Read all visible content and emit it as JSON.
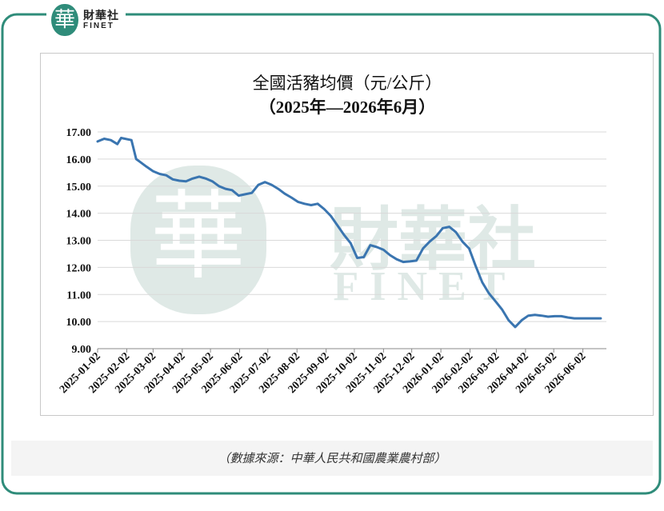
{
  "brand": {
    "seal": "華",
    "name_cn": "財華社",
    "name_en": "FINET"
  },
  "watermark": {
    "cn": "財華社",
    "en": "FINET"
  },
  "source_note": "（數據來源：中華人民共和國農業農村部）",
  "colors": {
    "frame": "#2f8c7a",
    "line": "#3a75b0",
    "grid": "#d9d9d9",
    "watermark": "#dfe9e6"
  },
  "chart_data": {
    "type": "line",
    "title": "全國活豬均價（元/公斤）",
    "subtitle": "（2025年—2026年6月）",
    "xlabel": "",
    "ylabel": "",
    "ylim": [
      9,
      17
    ],
    "y_ticks": [
      "9.00",
      "10.00",
      "11.00",
      "12.00",
      "13.00",
      "14.00",
      "15.00",
      "16.00",
      "17.00"
    ],
    "x_ticks": [
      "2025-01-02",
      "2025-02-02",
      "2025-03-02",
      "2025-04-02",
      "2025-05-02",
      "2025-06-02",
      "2025-07-02",
      "2025-08-02",
      "2025-09-02",
      "2025-10-02",
      "2025-11-02",
      "2025-12-02",
      "2026-01-02",
      "2026-02-02",
      "2026-03-02",
      "2026-04-02",
      "2026-05-02",
      "2026-06-02"
    ],
    "grid": true,
    "legend": "none",
    "series": [
      {
        "x": [
          "2025-01-02",
          "2025-01-09",
          "2025-01-16",
          "2025-01-23",
          "2025-01-27",
          "2025-02-07",
          "2025-02-12",
          "2025-02-16",
          "2025-02-23",
          "2025-03-02",
          "2025-03-09",
          "2025-03-16",
          "2025-03-23",
          "2025-03-30",
          "2025-04-06",
          "2025-04-13",
          "2025-04-20",
          "2025-04-27",
          "2025-05-04",
          "2025-05-11",
          "2025-05-18",
          "2025-05-25",
          "2025-06-01",
          "2025-06-08",
          "2025-06-15",
          "2025-06-22",
          "2025-06-29",
          "2025-07-06",
          "2025-07-13",
          "2025-07-20",
          "2025-07-27",
          "2025-08-03",
          "2025-08-10",
          "2025-08-17",
          "2025-08-24",
          "2025-08-31",
          "2025-09-07",
          "2025-09-14",
          "2025-09-21",
          "2025-09-28",
          "2025-10-05",
          "2025-10-12",
          "2025-10-19",
          "2025-10-26",
          "2025-11-02",
          "2025-11-09",
          "2025-11-16",
          "2025-11-23",
          "2025-11-30",
          "2025-12-07",
          "2025-12-14",
          "2025-12-21",
          "2025-12-28",
          "2026-01-04",
          "2026-01-11",
          "2026-01-18",
          "2026-01-25",
          "2026-02-01",
          "2026-02-08",
          "2026-02-15",
          "2026-02-22",
          "2026-03-01",
          "2026-03-08",
          "2026-03-15",
          "2026-03-22",
          "2026-03-29",
          "2026-04-05",
          "2026-04-12",
          "2026-04-19",
          "2026-04-26",
          "2026-05-03",
          "2026-05-10",
          "2026-05-17",
          "2026-05-24",
          "2026-05-31",
          "2026-06-07",
          "2026-06-14",
          "2026-06-21"
        ],
        "values": [
          16.65,
          16.75,
          16.7,
          16.55,
          16.78,
          16.7,
          16.0,
          15.9,
          15.72,
          15.55,
          15.45,
          15.4,
          15.25,
          15.2,
          15.18,
          15.28,
          15.35,
          15.28,
          15.18,
          15.0,
          14.9,
          14.85,
          14.65,
          14.7,
          14.75,
          15.05,
          15.15,
          15.05,
          14.9,
          14.72,
          14.58,
          14.42,
          14.35,
          14.3,
          14.35,
          14.15,
          13.9,
          13.55,
          13.2,
          12.9,
          12.35,
          12.38,
          12.82,
          12.75,
          12.65,
          12.45,
          12.3,
          12.2,
          12.22,
          12.25,
          12.7,
          12.95,
          13.15,
          13.45,
          13.5,
          13.3,
          12.95,
          12.7,
          12.05,
          11.45,
          11.05,
          10.75,
          10.45,
          10.05,
          9.8,
          10.05,
          10.22,
          10.25,
          10.22,
          10.18,
          10.2,
          10.2,
          10.15,
          10.12,
          10.12,
          10.12,
          10.12,
          10.12
        ]
      }
    ]
  }
}
